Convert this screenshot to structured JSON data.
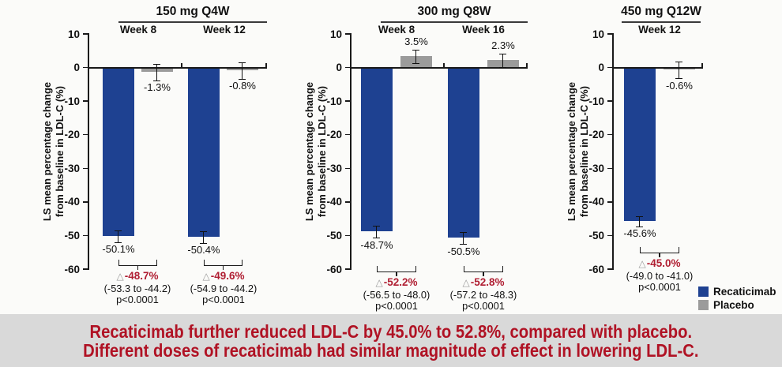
{
  "colors": {
    "recaticimab_bar": "#1e4191",
    "placebo_bar": "#9b9b9b",
    "difference_red": "#b01e32",
    "banner_text_red": "#b01224",
    "banner_background": "#d9d9d9",
    "axis": "#1a1a1a",
    "triangle_gray": "#9a9a9a"
  },
  "banner": {
    "line1": "Recaticimab further reduced LDL-C by 45.0% to 52.8%, compared with placebo.",
    "line2": "Different doses of recaticimab had similar magnitude of effect in lowering LDL-C."
  },
  "chart_data": {
    "type": "bar",
    "orientation": "vertical",
    "ylabel": "LS mean percentage change from baseline in LDL-C (%)",
    "ylabel_lines": [
      "LS mean percentage change",
      "from baseline in LDL-C (%)"
    ],
    "ylim": [
      -60,
      10
    ],
    "yticks": [
      10,
      0,
      -10,
      -20,
      -30,
      -40,
      -50,
      -60
    ],
    "yticks_labels": [
      "10",
      "0",
      "-10",
      "-20",
      "-30",
      "-40",
      "-50",
      "-60"
    ],
    "grid": false,
    "triangle_symbol": "△",
    "legend": {
      "position": "bottom-right",
      "items": [
        {
          "label": "Recaticimab",
          "color": "#1e4191"
        },
        {
          "label": "Placebo",
          "color": "#9b9b9b"
        }
      ]
    },
    "panels": [
      {
        "title": "150 mg Q4W",
        "groups": [
          {
            "label": "Week 8",
            "recaticimab": -50.1,
            "recaticimab_label": "-50.1%",
            "placebo": -1.3,
            "placebo_label": "-1.3%",
            "difference": "-48.7%",
            "ci": "(-53.3 to -44.2)",
            "p_value": "p<0.0001"
          },
          {
            "label": "Week 12",
            "recaticimab": -50.4,
            "recaticimab_label": "-50.4%",
            "placebo": -0.8,
            "placebo_label": "-0.8%",
            "difference": "-49.6%",
            "ci": "(-54.9 to -44.2)",
            "p_value": "p<0.0001"
          }
        ]
      },
      {
        "title": "300 mg Q8W",
        "groups": [
          {
            "label": "Week 8",
            "recaticimab": -48.7,
            "recaticimab_label": "-48.7%",
            "placebo": 3.5,
            "placebo_label": "3.5%",
            "difference": "-52.2%",
            "ci": "(-56.5 to -48.0)",
            "p_value": "p<0.0001"
          },
          {
            "label": "Week 16",
            "recaticimab": -50.5,
            "recaticimab_label": "-50.5%",
            "placebo": 2.3,
            "placebo_label": "2.3%",
            "difference": "-52.8%",
            "ci": "(-57.2 to -48.3)",
            "p_value": "p<0.0001"
          }
        ]
      },
      {
        "title": "450 mg Q12W",
        "groups": [
          {
            "label": "Week 12",
            "recaticimab": -45.6,
            "recaticimab_label": "-45.6%",
            "placebo": -0.6,
            "placebo_label": "-0.6%",
            "difference": "-45.0%",
            "ci": "(-49.0 to -41.0)",
            "p_value": "p<0.0001"
          }
        ]
      }
    ]
  }
}
